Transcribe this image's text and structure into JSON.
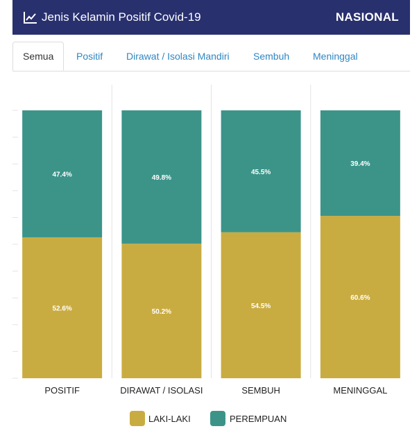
{
  "header": {
    "title": "Jenis Kelamin Positif Covid-19",
    "region": "NASIONAL",
    "icon": "line-chart-icon"
  },
  "tabs": [
    {
      "label": "Semua",
      "active": true
    },
    {
      "label": "Positif",
      "active": false
    },
    {
      "label": "Dirawat / Isolasi Mandiri",
      "active": false
    },
    {
      "label": "Sembuh",
      "active": false
    },
    {
      "label": "Meninggal",
      "active": false
    }
  ],
  "colors": {
    "laki": "#c9ac41",
    "perempuan": "#3c9489",
    "header_bg": "#28306e",
    "tab_link": "#2f86c2"
  },
  "chart_data": {
    "type": "bar",
    "stacked": true,
    "categories": [
      "POSITIF",
      "DIRAWAT / ISOLASI",
      "SEMBUH",
      "MENINGGAL"
    ],
    "series": [
      {
        "name": "LAKI-LAKI",
        "values": [
          52.6,
          50.2,
          54.5,
          60.6
        ],
        "labels": [
          "52.6%",
          "50.2%",
          "54.5%",
          "60.6%"
        ]
      },
      {
        "name": "PEREMPUAN",
        "values": [
          47.4,
          49.8,
          45.5,
          39.4
        ],
        "labels": [
          "47.4%",
          "49.8%",
          "45.5%",
          "39.4%"
        ]
      }
    ],
    "ylim": [
      0,
      100
    ],
    "legend": "bottom"
  }
}
